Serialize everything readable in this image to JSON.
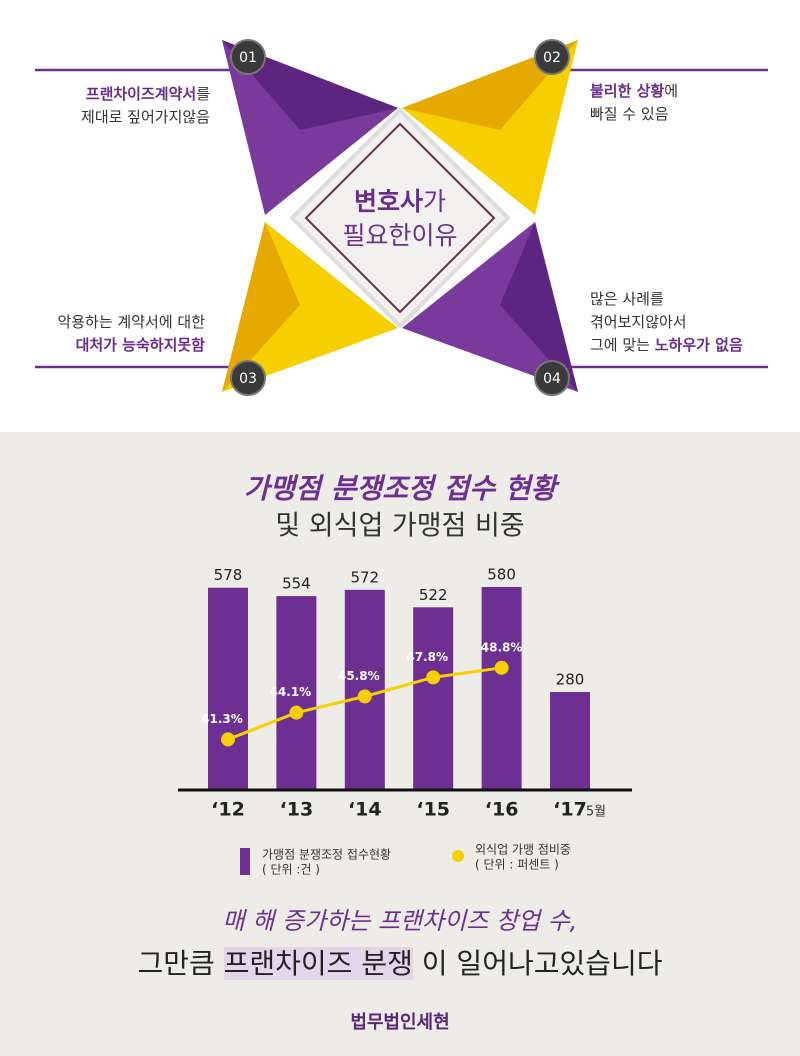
{
  "diagram": {
    "center": [
      [
        {
          "text": "변호사",
          "bold": true
        },
        {
          "text": "가"
        }
      ],
      [
        {
          "text": "필요한이유"
        }
      ]
    ],
    "items": [
      {
        "number": "01",
        "lines": [
          [
            {
              "text": "프랜차이즈계약서",
              "bold": true
            },
            {
              "text": "를"
            }
          ],
          [
            {
              "text": "제대로 짚어가지않음"
            }
          ]
        ]
      },
      {
        "number": "02",
        "lines": [
          [
            {
              "text": "불리한 상황",
              "bold": true
            },
            {
              "text": "에"
            }
          ],
          [
            {
              "text": "빠질 수 있음"
            }
          ]
        ]
      },
      {
        "number": "03",
        "lines": [
          [
            {
              "text": "악용하는 계약서에 대한"
            }
          ],
          [
            {
              "text": "대처가 능숙하지못함",
              "bold": true
            }
          ]
        ]
      },
      {
        "number": "04",
        "lines": [
          [
            {
              "text": "많은 사례를"
            }
          ],
          [
            {
              "text": "겪어보지않아서"
            }
          ],
          [
            {
              "text": "그에 맞는 "
            },
            {
              "text": "노하우가 없음",
              "bold": true
            }
          ]
        ]
      }
    ]
  },
  "chart_data": {
    "type": "bar_line",
    "title": "가맹점 분쟁조정 접수 현황",
    "subtitle": "및 외식업 가맹점 비중",
    "categories": [
      "‘12",
      "‘13",
      "‘14",
      "‘15",
      "‘16",
      "‘17"
    ],
    "category_note": "5월",
    "series": [
      {
        "name": "가맹점 분쟁조정 접수현황",
        "unit": "( 단위 :건 )",
        "type": "bar",
        "color": "#6e2f93",
        "values": [
          578,
          554,
          572,
          522,
          580,
          280
        ]
      },
      {
        "name": "외식업 가맹 점비중",
        "unit": "( 단위 : 퍼센트 )",
        "type": "line",
        "axis": "y2",
        "color": "#f7d000",
        "values": [
          41.3,
          44.1,
          45.8,
          47.8,
          48.8,
          null
        ],
        "value_labels": [
          "41.3%",
          "44.1%",
          "45.8%",
          "47.8%",
          "48.8%",
          null
        ]
      }
    ],
    "ylim": [
      0,
      600
    ],
    "y2lim": [
      36,
      58
    ]
  },
  "footer": {
    "handwritten": "매 해 증가하는 프랜차이즈 창업 수,",
    "message": [
      {
        "text": "그만큼 "
      },
      {
        "text": "프랜차이즈 분쟁",
        "highlight": true
      },
      {
        "text": " 이 일어나고있습니다"
      }
    ],
    "logo": "법무법인세현"
  }
}
